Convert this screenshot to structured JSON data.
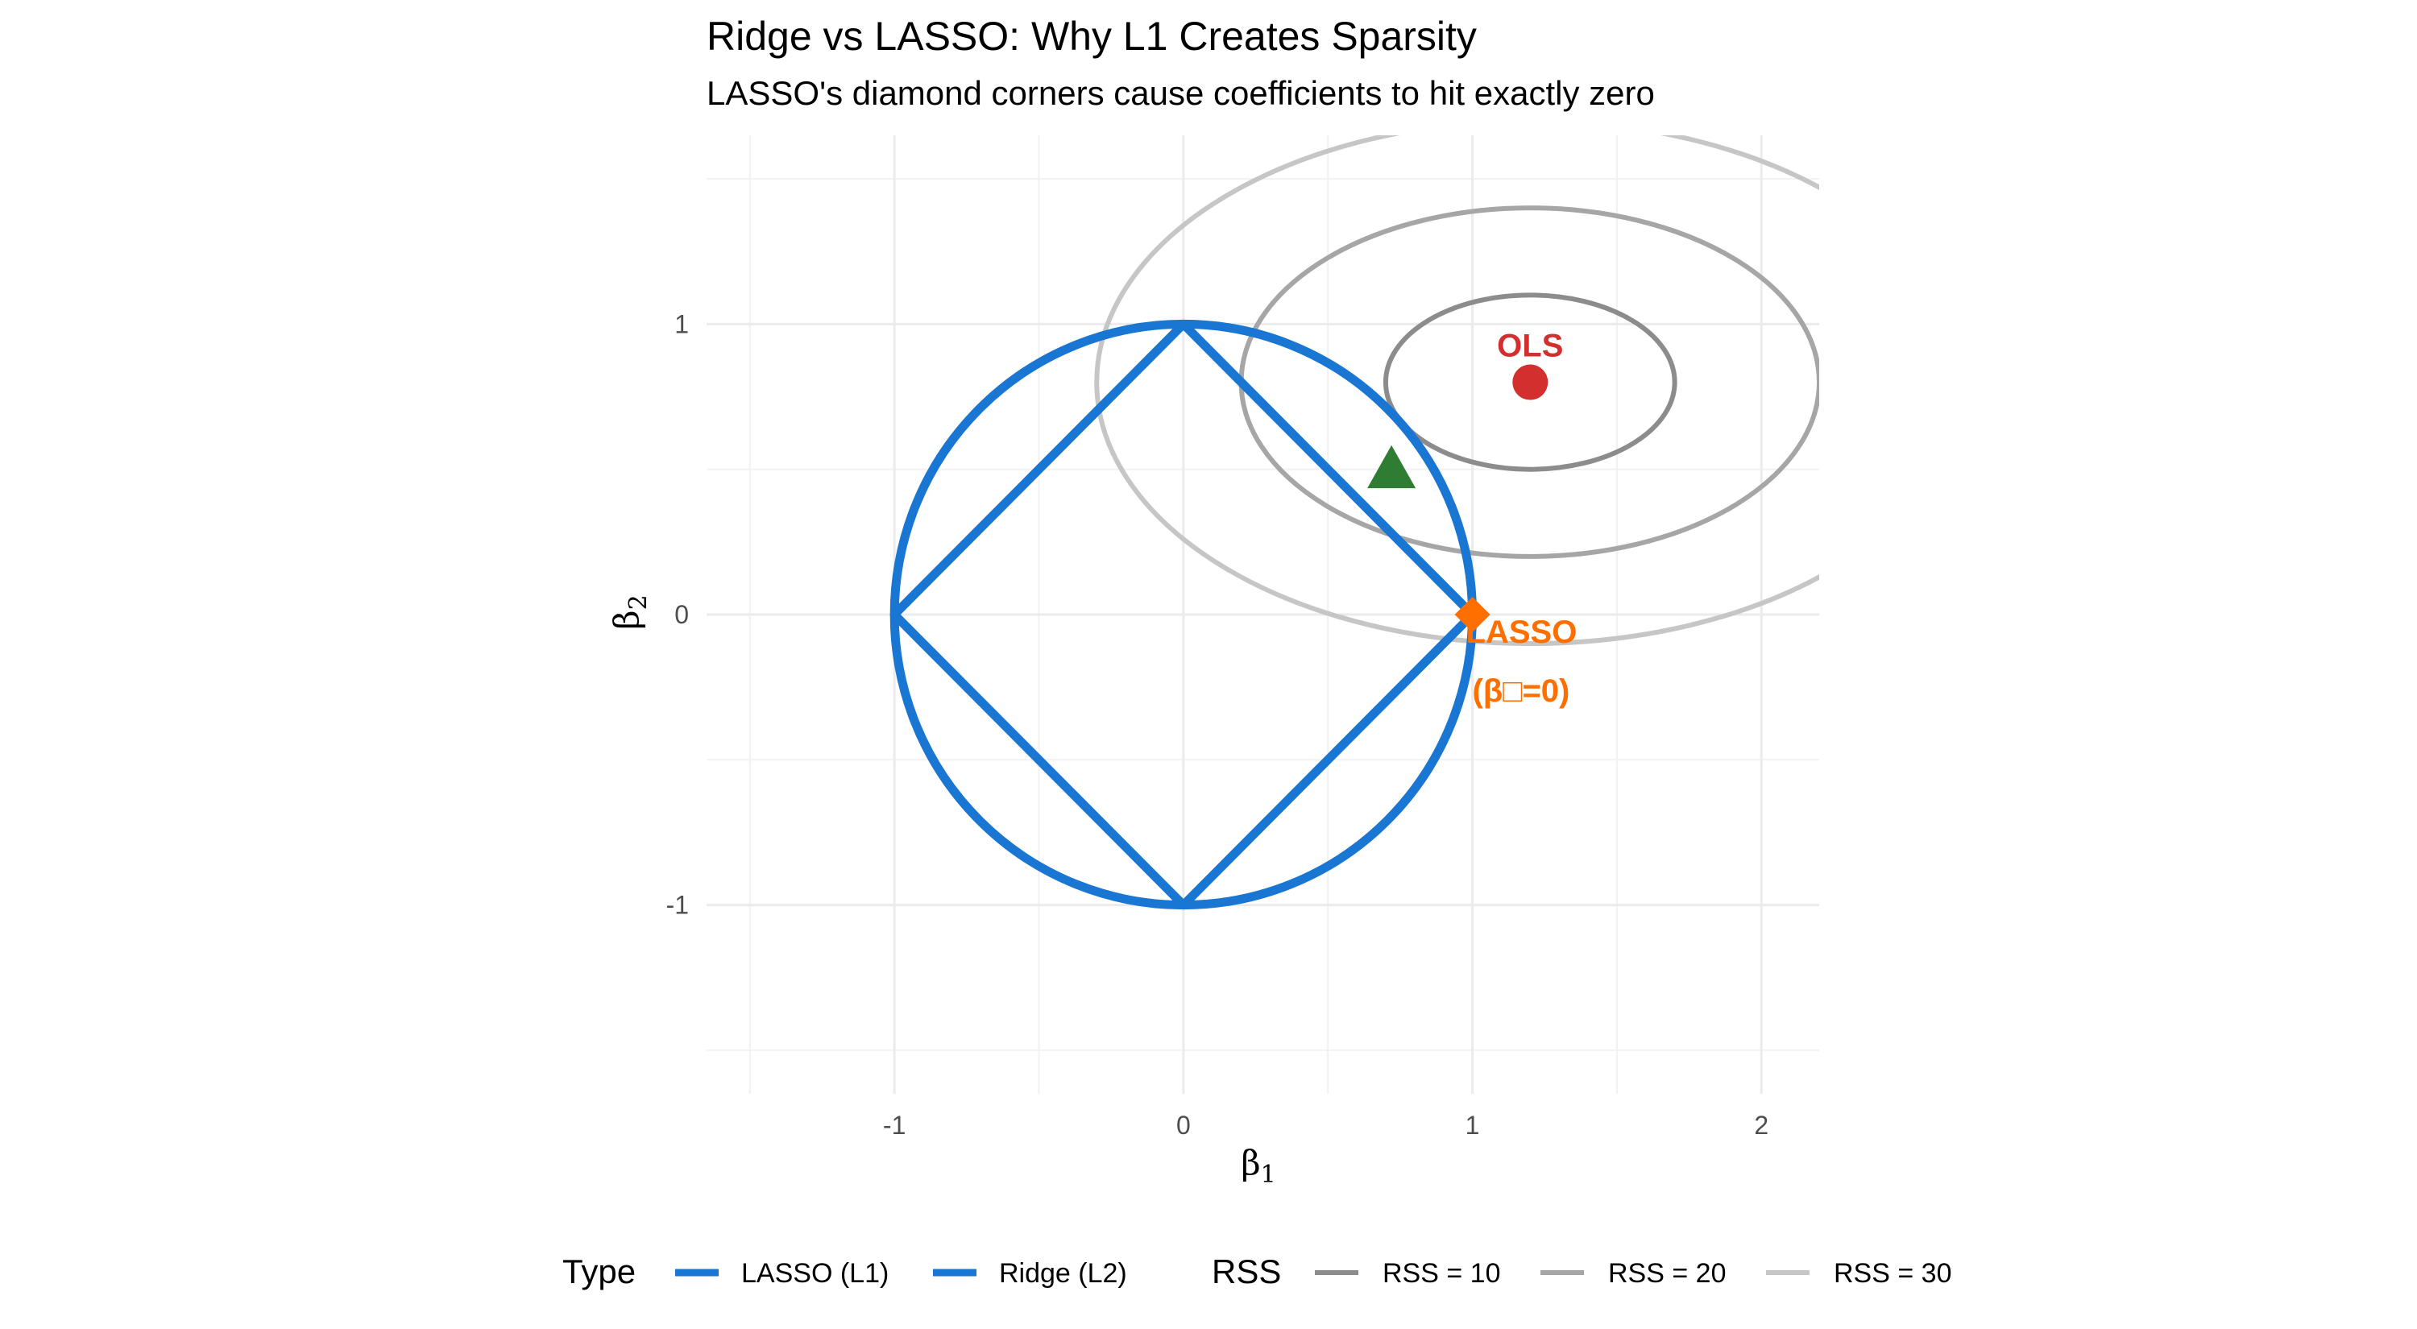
{
  "chart_data": {
    "type": "line",
    "title": "Ridge vs LASSO: Why L1 Creates Sparsity",
    "subtitle": "LASSO's diamond corners cause coefficients to hit exactly zero",
    "xlabel": "β",
    "xlabel_sub": "1",
    "ylabel": "β",
    "ylabel_sub": "2",
    "xlim": [
      -1.65,
      2.2
    ],
    "ylim": [
      -1.65,
      1.65
    ],
    "x_ticks": [
      -1,
      0,
      1,
      2
    ],
    "y_ticks": [
      -1,
      0,
      1
    ],
    "x_tick_labels": [
      "-1",
      "0",
      "1",
      "2"
    ],
    "y_tick_labels": [
      "-1",
      "0",
      "1"
    ],
    "grid": true,
    "legend_position": "bottom",
    "colors": {
      "lasso": "#1976d2",
      "ridge": "#1976d2",
      "rss10": "#8c8c8c",
      "rss20": "#a6a6a6",
      "rss30": "#c6c6c6",
      "ols": "#d32f2f",
      "lasso_point": "#ff6f00",
      "ridge_point": "#2e7d32"
    },
    "constraint_series": [
      {
        "name": "LASSO (L1)",
        "shape": "diamond",
        "radius": 1,
        "color": "#1976d2"
      },
      {
        "name": "Ridge (L2)",
        "shape": "circle",
        "radius": 1,
        "color": "#1976d2"
      }
    ],
    "rss_contours": [
      {
        "name": "RSS = 10",
        "center": [
          1.2,
          0.8
        ],
        "semi_axis_x": 0.5,
        "semi_axis_y": 0.3,
        "color": "#8c8c8c"
      },
      {
        "name": "RSS = 20",
        "center": [
          1.2,
          0.8
        ],
        "semi_axis_x": 1.0,
        "semi_axis_y": 0.6,
        "color": "#a6a6a6"
      },
      {
        "name": "RSS = 30",
        "center": [
          1.2,
          0.8
        ],
        "semi_axis_x": 1.5,
        "semi_axis_y": 0.9,
        "color": "#c6c6c6"
      }
    ],
    "points": [
      {
        "name": "OLS",
        "label": "OLS",
        "x": 1.2,
        "y": 0.8,
        "marker": "circle",
        "color": "#d32f2f"
      },
      {
        "name": "Ridge",
        "label": "",
        "x": 0.72,
        "y": 0.5,
        "marker": "triangle",
        "color": "#2e7d32"
      },
      {
        "name": "LASSO",
        "label": "LASSO",
        "label_line2": "(β□=0)",
        "x": 1.0,
        "y": 0.0,
        "marker": "diamond",
        "color": "#ff6f00"
      }
    ],
    "legend": {
      "type_title": "Type",
      "type_items": [
        "LASSO (L1)",
        "Ridge (L2)"
      ],
      "rss_title": "RSS",
      "rss_items": [
        "RSS = 10",
        "RSS = 20",
        "RSS = 30"
      ]
    }
  }
}
